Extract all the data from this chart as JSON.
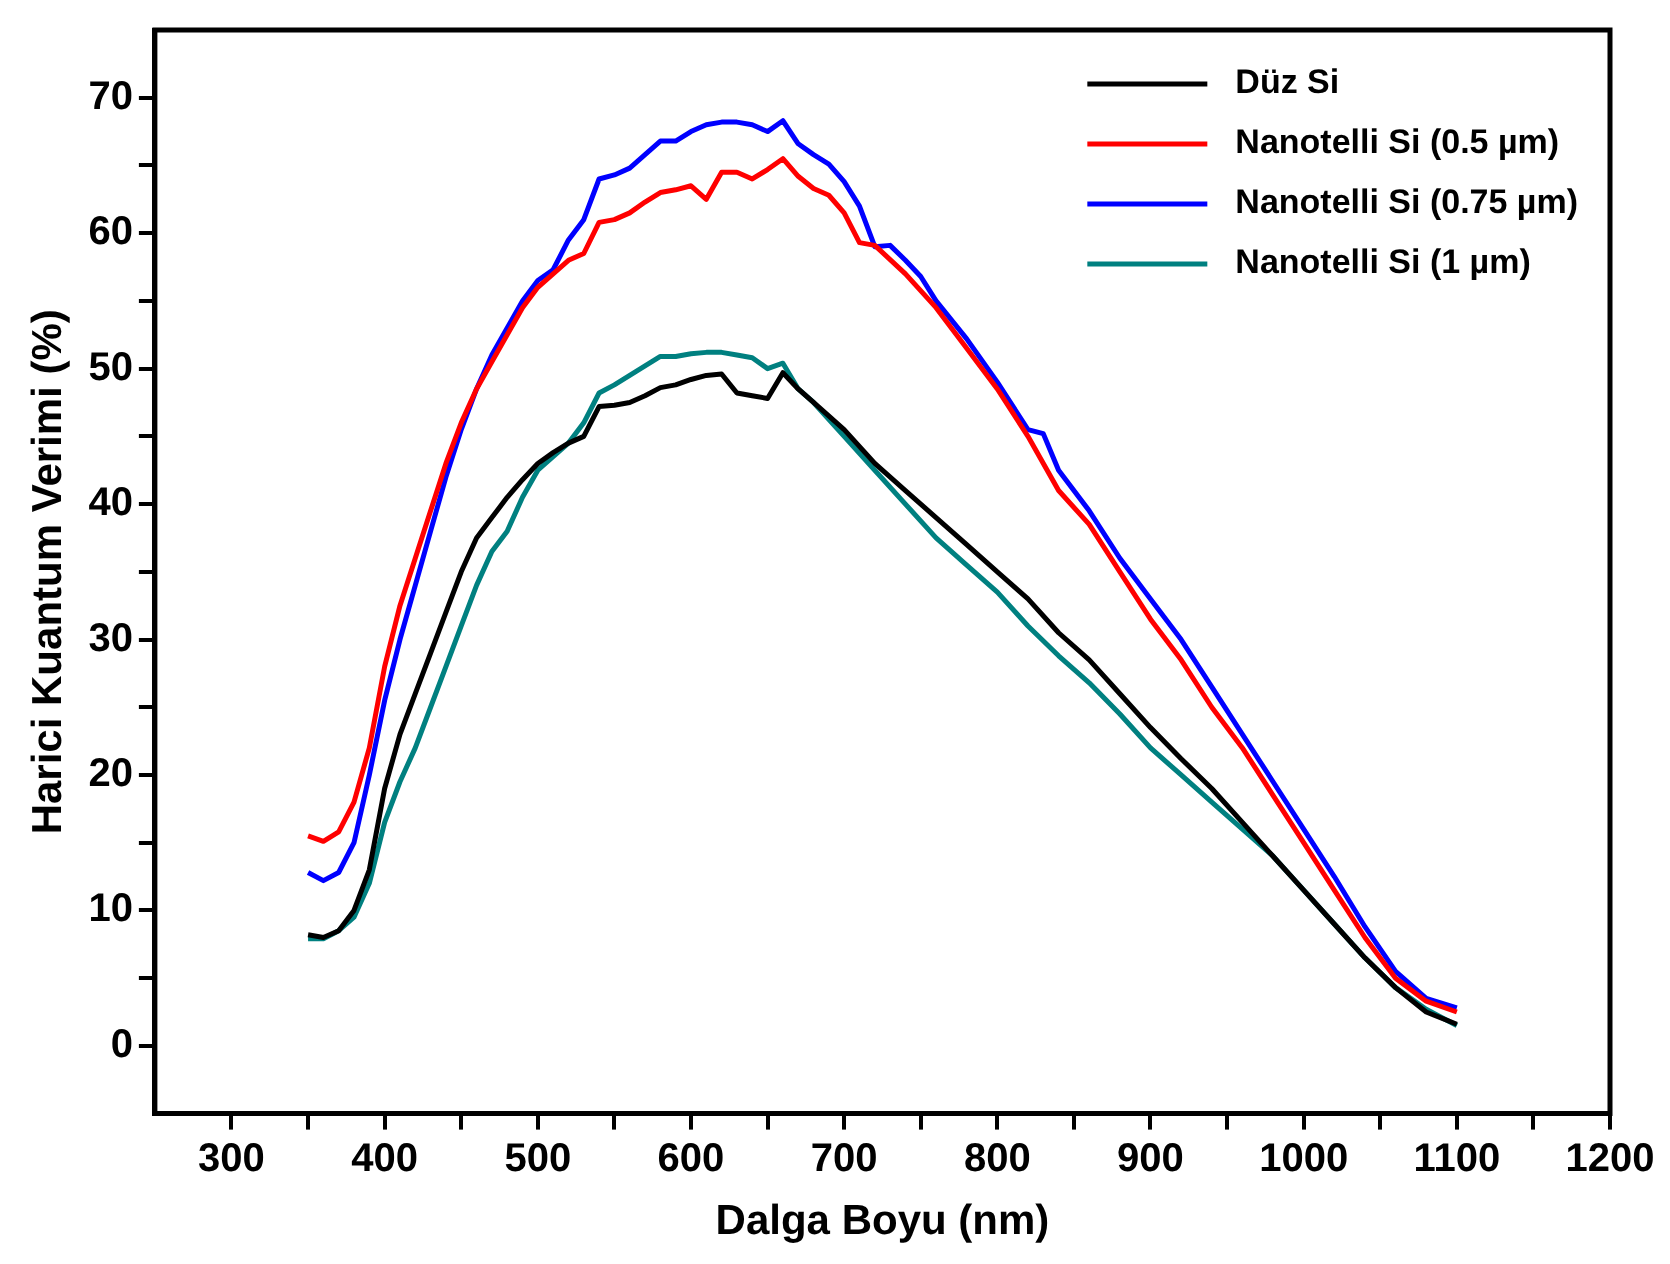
{
  "chart_data": {
    "type": "line",
    "xlabel": "Dalga Boyu (nm)",
    "ylabel": "Harici Kuantum Verimi (%)",
    "xlim": [
      250,
      1200
    ],
    "ylim": [
      -5,
      75
    ],
    "xticks": [
      300,
      {
        "value": 350,
        "label": null
      },
      400,
      {
        "value": 450,
        "label": null
      },
      500,
      {
        "value": 550,
        "label": null
      },
      600,
      {
        "value": 650,
        "label": null
      },
      700,
      {
        "value": 750,
        "label": null
      },
      800,
      {
        "value": 850,
        "label": null
      },
      900,
      {
        "value": 950,
        "label": null
      },
      1000,
      {
        "value": 1050,
        "label": null
      },
      1100,
      {
        "value": 1150,
        "label": null
      },
      1200
    ],
    "yticks": [
      0,
      {
        "value": 5,
        "label": null
      },
      10,
      {
        "value": 15,
        "label": null
      },
      20,
      {
        "value": 25,
        "label": null
      },
      30,
      {
        "value": 35,
        "label": null
      },
      40,
      {
        "value": 45,
        "label": null
      },
      50,
      {
        "value": 55,
        "label": null
      },
      60,
      {
        "value": 65,
        "label": null
      },
      70
    ],
    "legend": "top right",
    "grid": false,
    "marker": "none",
    "line_style": "solid",
    "series": [
      {
        "name": "Düz Si",
        "color": "#000000",
        "x": [
          350,
          360,
          370,
          380,
          390,
          400,
          410,
          420,
          430,
          440,
          450,
          460,
          470,
          480,
          490,
          500,
          510,
          520,
          530,
          540,
          550,
          560,
          570,
          580,
          590,
          600,
          610,
          620,
          630,
          640,
          650,
          660,
          670,
          680,
          700,
          720,
          740,
          760,
          780,
          800,
          820,
          840,
          860,
          880,
          900,
          920,
          940,
          960,
          980,
          1000,
          1020,
          1040,
          1060,
          1080,
          1100
        ],
        "values": [
          8.2,
          8,
          8.5,
          10,
          13,
          19,
          23,
          26,
          29,
          32,
          35,
          37.5,
          39,
          40.5,
          41.8,
          43,
          43.8,
          44.5,
          45,
          47.2,
          47.3,
          47.5,
          48,
          48.6,
          48.8,
          49.2,
          49.5,
          49.6,
          48.2,
          48,
          47.8,
          49.7,
          48.5,
          47.5,
          45.5,
          43,
          41,
          39,
          37,
          35,
          33,
          30.5,
          28.5,
          26,
          23.5,
          21.2,
          19,
          16.5,
          14,
          11.5,
          9,
          6.5,
          4.3,
          2.5,
          1.6
        ]
      },
      {
        "name": "Nanotelli Si (0.5 µm)",
        "color": "#ff0000",
        "x": [
          350,
          360,
          370,
          380,
          390,
          400,
          410,
          420,
          430,
          440,
          450,
          460,
          470,
          480,
          490,
          500,
          510,
          520,
          530,
          540,
          550,
          560,
          570,
          580,
          590,
          600,
          610,
          620,
          630,
          640,
          650,
          660,
          670,
          680,
          690,
          700,
          710,
          720,
          740,
          760,
          780,
          800,
          820,
          840,
          860,
          880,
          900,
          920,
          940,
          960,
          980,
          1000,
          1020,
          1040,
          1060,
          1080,
          1100
        ],
        "values": [
          15.5,
          15.1,
          15.8,
          18,
          22,
          28,
          32.5,
          36,
          39.5,
          43,
          46,
          48.5,
          50.5,
          52.5,
          54.5,
          56,
          57,
          58,
          58.5,
          60.8,
          61,
          61.5,
          62.3,
          63,
          63.2,
          63.5,
          62.5,
          64.5,
          64.5,
          64,
          64.7,
          65.5,
          64.2,
          63.3,
          62.8,
          61.5,
          59.3,
          59.1,
          57,
          54.5,
          51.5,
          48.5,
          45,
          41,
          38.5,
          35,
          31.5,
          28.5,
          25,
          22,
          18.5,
          15,
          11.5,
          8,
          5,
          3.3,
          2.5
        ]
      },
      {
        "name": "Nanotelli Si (0.75 µm)",
        "color": "#0000ff",
        "x": [
          350,
          360,
          370,
          380,
          390,
          400,
          410,
          420,
          430,
          440,
          450,
          460,
          470,
          480,
          490,
          500,
          510,
          520,
          530,
          540,
          550,
          560,
          570,
          580,
          590,
          600,
          610,
          620,
          630,
          640,
          650,
          660,
          670,
          680,
          690,
          700,
          710,
          720,
          730,
          740,
          750,
          760,
          780,
          800,
          820,
          830,
          840,
          860,
          880,
          900,
          920,
          940,
          960,
          980,
          1000,
          1020,
          1040,
          1060,
          1080,
          1100
        ],
        "values": [
          12.8,
          12.2,
          12.8,
          15,
          20,
          25.5,
          30,
          34,
          38,
          42,
          45.5,
          48.5,
          51,
          53,
          55,
          56.5,
          57.3,
          59.5,
          61,
          64,
          64.3,
          64.8,
          65.8,
          66.8,
          66.8,
          67.5,
          68,
          68.2,
          68.2,
          68,
          67.5,
          68.3,
          66.6,
          65.8,
          65.1,
          63.8,
          62,
          59,
          59.1,
          58,
          56.8,
          55,
          52.2,
          49,
          45.5,
          45.2,
          42.5,
          39.5,
          36,
          33,
          30,
          26.5,
          23,
          19.5,
          16,
          12.5,
          8.8,
          5.5,
          3.5,
          2.8
        ]
      },
      {
        "name": "Nanotelli Si (1 µm)",
        "color": "#008080",
        "x": [
          350,
          360,
          370,
          380,
          390,
          400,
          410,
          420,
          430,
          440,
          450,
          460,
          470,
          480,
          490,
          500,
          510,
          520,
          530,
          540,
          550,
          560,
          570,
          580,
          590,
          600,
          610,
          620,
          630,
          640,
          650,
          660,
          670,
          680,
          700,
          720,
          740,
          760,
          780,
          800,
          820,
          840,
          860,
          880,
          900,
          920,
          940,
          960,
          980,
          1000,
          1020,
          1040,
          1060,
          1080,
          1100
        ],
        "values": [
          7.9,
          7.9,
          8.5,
          9.5,
          12,
          16.5,
          19.5,
          22,
          25,
          28,
          31,
          34,
          36.5,
          38,
          40.5,
          42.5,
          43.5,
          44.5,
          46,
          48.2,
          48.8,
          49.5,
          50.2,
          50.9,
          50.9,
          51.1,
          51.2,
          51.2,
          51,
          50.8,
          50,
          50.4,
          48.5,
          47.5,
          45,
          42.5,
          40,
          37.5,
          35.5,
          33.5,
          31,
          28.8,
          26.8,
          24.5,
          22,
          20,
          18,
          16,
          14,
          11.5,
          9,
          6.5,
          4.3,
          2.7,
          1.5
        ]
      }
    ]
  }
}
